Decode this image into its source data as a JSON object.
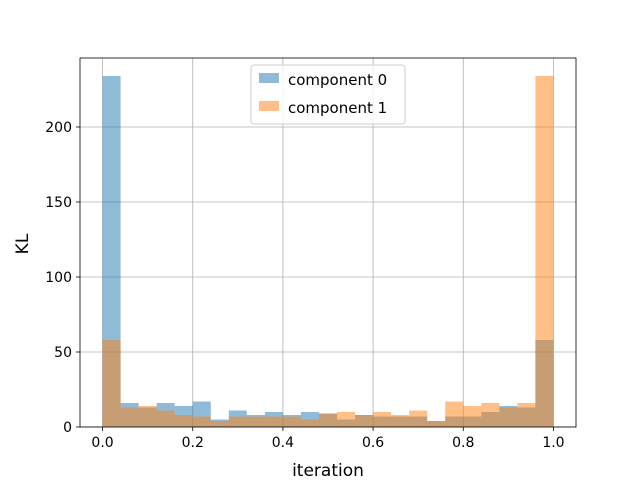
{
  "chart_data": {
    "type": "bar",
    "subtype": "overlapping-histogram",
    "title": "",
    "xlabel": "iteration",
    "ylabel": "KL",
    "xlim": [
      -0.05,
      1.05
    ],
    "ylim": [
      0,
      246
    ],
    "xticks": [
      0.0,
      0.2,
      0.4,
      0.6,
      0.8,
      1.0
    ],
    "xtick_labels": [
      "0.0",
      "0.2",
      "0.4",
      "0.6",
      "0.8",
      "1.0"
    ],
    "yticks": [
      0,
      50,
      100,
      150,
      200
    ],
    "ytick_labels": [
      "0",
      "50",
      "100",
      "150",
      "200"
    ],
    "grid": true,
    "legend_position": "top-center",
    "bin_edges": [
      0.0,
      0.04,
      0.08,
      0.12,
      0.16,
      0.2,
      0.24,
      0.28,
      0.32,
      0.36,
      0.4,
      0.44,
      0.48,
      0.52,
      0.56,
      0.6,
      0.64,
      0.68,
      0.72,
      0.76,
      0.8,
      0.84,
      0.88,
      0.92,
      0.96,
      1.0
    ],
    "series": [
      {
        "name": "component 0",
        "color": "#1f77b4",
        "opacity": 0.5,
        "values": [
          234,
          16,
          13,
          16,
          14,
          17,
          5,
          11,
          8,
          10,
          8,
          10,
          9,
          5,
          8,
          7,
          7,
          7,
          4,
          7,
          7,
          10,
          14,
          13,
          58
        ]
      },
      {
        "name": "component 1",
        "color": "#ff7f0e",
        "opacity": 0.5,
        "values": [
          58,
          13,
          14,
          11,
          8,
          7,
          4,
          7,
          7,
          7,
          7,
          5,
          9,
          10,
          8,
          10,
          8,
          11,
          4,
          17,
          14,
          16,
          13,
          16,
          234
        ]
      }
    ]
  }
}
